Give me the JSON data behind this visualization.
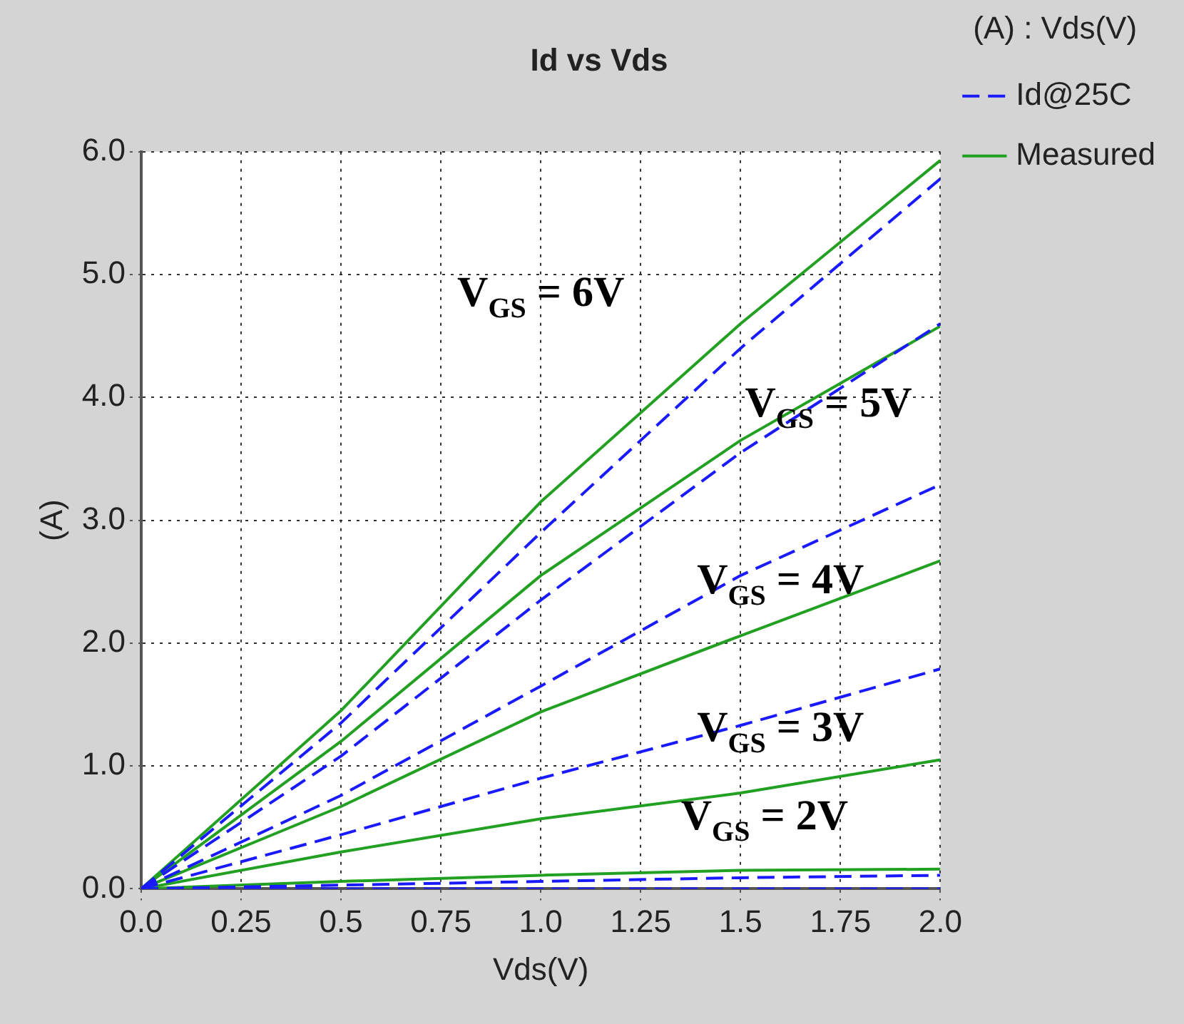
{
  "chart_data": {
    "type": "line",
    "title": "Id vs Vds",
    "xlabel": "Vds(V)",
    "ylabel": "(A)",
    "legend_title": "(A) : Vds(V)",
    "legend": "right",
    "grid": true,
    "marker": "none",
    "x": [
      0,
      0.5,
      1.0,
      1.5,
      2.0
    ],
    "xlim": [
      0,
      2
    ],
    "xticks": [
      {
        "value": 0,
        "label": "0.0"
      },
      0.25,
      0.5,
      0.75,
      {
        "value": 1,
        "label": "1.0"
      },
      1.25,
      1.5,
      1.75,
      {
        "value": 2,
        "label": "2.0"
      }
    ],
    "ylim": [
      0,
      6
    ],
    "yticks": [
      {
        "value": 0,
        "label": "0.0"
      },
      {
        "value": 1,
        "label": "1.0"
      },
      {
        "value": 2,
        "label": "2.0"
      },
      {
        "value": 3,
        "label": "3.0"
      },
      {
        "value": 4,
        "label": "4.0"
      },
      {
        "value": 5,
        "label": "5.0"
      },
      {
        "value": 6,
        "label": "6.0"
      }
    ],
    "series": [
      {
        "name": "Id@25C",
        "color": "#1a1aff",
        "line_style": "dashed",
        "values": [
          0,
          1.35,
          2.9,
          4.4,
          5.78
        ]
      },
      {
        "color": "#1a1aff",
        "line_style": "dashed",
        "values": [
          0,
          1.08,
          2.35,
          3.55,
          4.6
        ]
      },
      {
        "color": "#1a1aff",
        "line_style": "dashed",
        "values": [
          0,
          0.76,
          1.65,
          2.55,
          3.29
        ]
      },
      {
        "color": "#1a1aff",
        "line_style": "dashed",
        "values": [
          0,
          0.44,
          0.9,
          1.33,
          1.79
        ]
      },
      {
        "color": "#1a1aff",
        "line_style": "dashed",
        "values": [
          0,
          0.03,
          0.06,
          0.09,
          0.11
        ]
      },
      {
        "color": "#1a1aff",
        "line_style": "dashed",
        "values": [
          0,
          0,
          0,
          0,
          0
        ]
      },
      {
        "name": "Measured",
        "color": "#22a022",
        "line_style": "solid",
        "values": [
          0,
          1.45,
          3.15,
          4.6,
          5.93
        ]
      },
      {
        "color": "#22a022",
        "line_style": "solid",
        "values": [
          0,
          1.2,
          2.55,
          3.65,
          4.58
        ]
      },
      {
        "color": "#22a022",
        "line_style": "solid",
        "values": [
          0,
          0.67,
          1.44,
          2.06,
          2.67
        ]
      },
      {
        "color": "#22a022",
        "line_style": "solid",
        "values": [
          0,
          0.3,
          0.57,
          0.78,
          1.05
        ]
      },
      {
        "color": "#22a022",
        "line_style": "solid",
        "values": [
          0,
          0.06,
          0.11,
          0.15,
          0.16
        ]
      }
    ],
    "annotations": [
      "V$_{GS}$ = 6V",
      "V$_{GS}$ = 5V",
      "V$_{GS}$ = 4V",
      "V$_{GS}$ = 3V",
      "V$_{GS}$ = 2V"
    ]
  }
}
